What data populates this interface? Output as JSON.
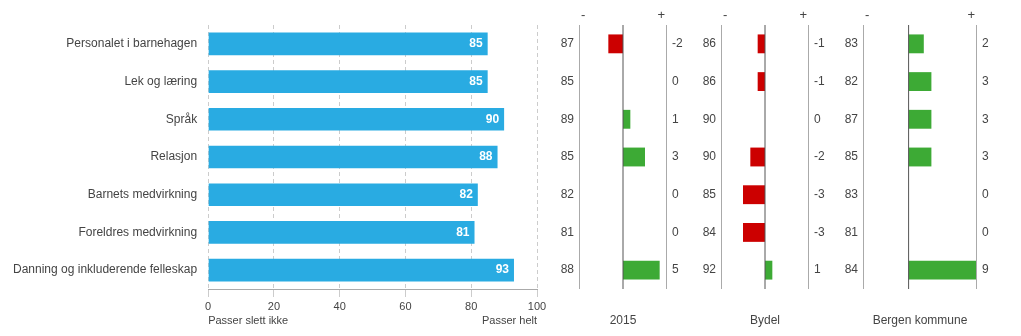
{
  "chart_data": [
    {
      "type": "bar",
      "orientation": "horizontal",
      "categories": [
        "Personalet i barnehagen",
        "Lek og læring",
        "Språk",
        "Relasjon",
        "Barnets medvirkning",
        "Foreldres medvirkning",
        "Danning og inkluderende felleskap"
      ],
      "values": [
        85,
        85,
        90,
        88,
        82,
        81,
        93
      ],
      "color": "#29ABE2",
      "xlim": [
        0,
        100
      ],
      "xticks": [
        0,
        20,
        40,
        60,
        80,
        100
      ],
      "grid": true,
      "data_labels": true,
      "annotations": [
        "Passer slett ikke",
        "Passer helt"
      ]
    },
    {
      "type": "bar",
      "orientation": "horizontal",
      "title": "2015",
      "categories": [
        "Personalet i barnehagen",
        "Lek og læring",
        "Språk",
        "Relasjon",
        "Barnets medvirkning",
        "Foreldres medvirkning",
        "Danning og inkluderende felleskap"
      ],
      "values": [
        -2,
        0,
        1,
        3,
        0,
        0,
        5
      ],
      "colors": [
        "#CC0000",
        "#3DAA35",
        "#3DAA35",
        "#3DAA35",
        "#3DAA35",
        "#3DAA35",
        "#3DAA35"
      ],
      "prev_values": [
        87,
        85,
        89,
        85,
        82,
        81,
        88
      ],
      "xlim": [
        -6,
        6
      ],
      "xticks": [
        -6,
        -3,
        0,
        3,
        6
      ],
      "grid": false,
      "data_labels": true,
      "tick_labels": false,
      "annotations": [
        "-",
        "+"
      ]
    },
    {
      "type": "bar",
      "orientation": "horizontal",
      "title": "Bydel",
      "categories": [
        "Personalet i barnehagen",
        "Lek og læring",
        "Språk",
        "Relasjon",
        "Barnets medvirkning",
        "Foreldres medvirkning",
        "Danning og inkluderende felleskap"
      ],
      "values": [
        -1,
        -1,
        0,
        -2,
        -3,
        -3,
        1
      ],
      "colors": [
        "#CC0000",
        "#CC0000",
        "#3DAA35",
        "#CC0000",
        "#CC0000",
        "#CC0000",
        "#3DAA35"
      ],
      "prev_values": [
        86,
        86,
        90,
        90,
        85,
        84,
        92
      ],
      "xlim": [
        -6,
        6
      ],
      "xticks": [
        -6,
        -3,
        0,
        3,
        6
      ],
      "grid": false,
      "data_labels": true,
      "tick_labels": false,
      "annotations": [
        "-",
        "+"
      ]
    },
    {
      "type": "bar",
      "orientation": "horizontal",
      "title": "Bergen kommune",
      "categories": [
        "Personalet i barnehagen",
        "Lek og læring",
        "Språk",
        "Relasjon",
        "Barnets medvirkning",
        "Foreldres medvirkning",
        "Danning og inkluderende felleskap"
      ],
      "values": [
        2,
        3,
        3,
        3,
        0,
        0,
        9
      ],
      "colors": [
        "#3DAA35",
        "#3DAA35",
        "#3DAA35",
        "#3DAA35",
        "#3DAA35",
        "#3DAA35",
        "#3DAA35"
      ],
      "prev_values": [
        83,
        82,
        87,
        85,
        83,
        81,
        84
      ],
      "xlim": [
        -6,
        9
      ],
      "xticks": [
        -6,
        -3,
        0,
        3,
        6,
        9
      ],
      "grid": false,
      "data_labels": true,
      "tick_labels": false,
      "annotations": [
        "-",
        "+"
      ]
    }
  ]
}
